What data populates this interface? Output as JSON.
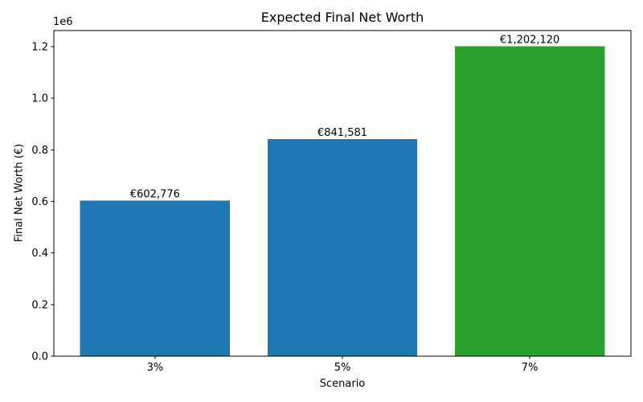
{
  "figure": {
    "title": "Expected Final Net Worth",
    "xlabel": "Scenario",
    "ylabel": "Final Net Worth (€)",
    "y_offset_label": "1e6",
    "background_color": "#ffffff",
    "spine_color": "#000000",
    "text_color": "#000000"
  },
  "chart_data": {
    "type": "bar",
    "title": "Expected Final Net Worth",
    "xlabel": "Scenario",
    "ylabel": "Final Net Worth (€)",
    "categories": [
      "3%",
      "5%",
      "7%"
    ],
    "values": [
      602776,
      841581,
      1202120
    ],
    "bar_labels": [
      "€602,776",
      "€841,581",
      "€1,202,120"
    ],
    "bar_colors": [
      "#1f77b4",
      "#1f77b4",
      "#2ca02c"
    ],
    "ylim": [
      0,
      1262226
    ],
    "yticks": {
      "values": [
        0,
        200000,
        400000,
        600000,
        800000,
        1000000,
        1200000
      ],
      "labels": [
        "0.0",
        "0.2",
        "0.4",
        "0.6",
        "0.8",
        "1.0",
        "1.2"
      ]
    },
    "y_offset_label": "1e6",
    "grid": false,
    "legend": null,
    "bar_relative_width": 0.8,
    "x_margin": 0.05
  }
}
